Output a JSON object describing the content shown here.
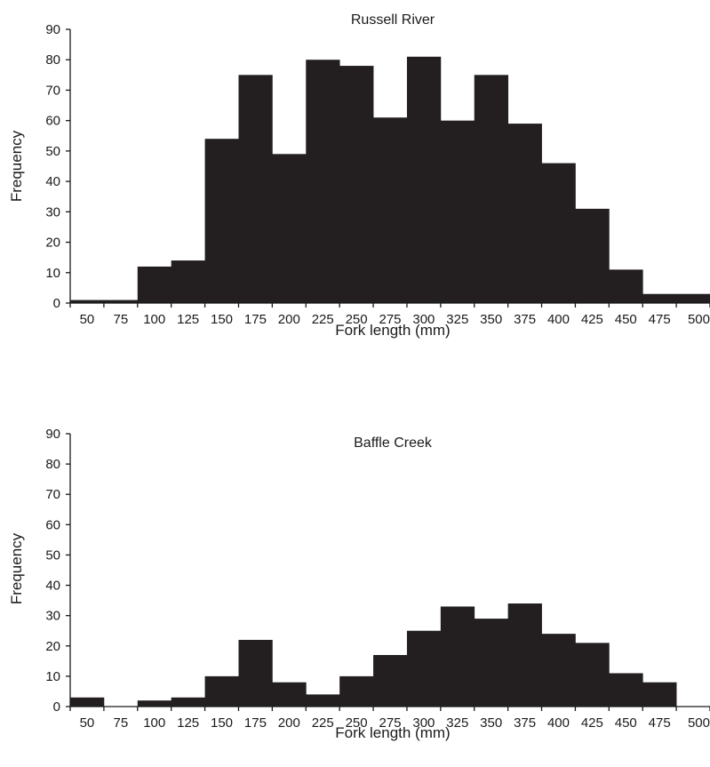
{
  "chart_data": [
    {
      "type": "bar",
      "title": "Russell River",
      "xlabel": "Fork length (mm)",
      "ylabel": "Frequency",
      "ylim": [
        0,
        90
      ],
      "yticks": [
        "0",
        "10",
        "20",
        "30",
        "40",
        "50",
        "60",
        "70",
        "80",
        "90"
      ],
      "categories": [
        "50",
        "75",
        "100",
        "125",
        "150",
        "175",
        "200",
        "225",
        "250",
        "275",
        "300",
        "325",
        "350",
        "375",
        "400",
        "425",
        "450",
        "475",
        "500"
      ],
      "values": [
        1,
        1,
        12,
        14,
        54,
        75,
        49,
        80,
        78,
        61,
        81,
        60,
        75,
        59,
        46,
        31,
        11,
        3,
        3
      ],
      "bar_color": "#231f20",
      "grid": false
    },
    {
      "type": "bar",
      "title": "Baffle Creek",
      "xlabel": "Fork length (mm)",
      "ylabel": "Frequency",
      "ylim": [
        0,
        90
      ],
      "yticks": [
        "0",
        "10",
        "20",
        "30",
        "40",
        "50",
        "60",
        "70",
        "80",
        "90"
      ],
      "categories": [
        "50",
        "75",
        "100",
        "125",
        "150",
        "175",
        "200",
        "225",
        "250",
        "275",
        "300",
        "325",
        "350",
        "375",
        "400",
        "425",
        "450",
        "475",
        "500"
      ],
      "values": [
        3,
        0,
        2,
        3,
        10,
        22,
        8,
        4,
        10,
        17,
        25,
        33,
        29,
        34,
        24,
        21,
        11,
        8,
        0
      ],
      "bar_color": "#231f20",
      "grid": false
    }
  ]
}
